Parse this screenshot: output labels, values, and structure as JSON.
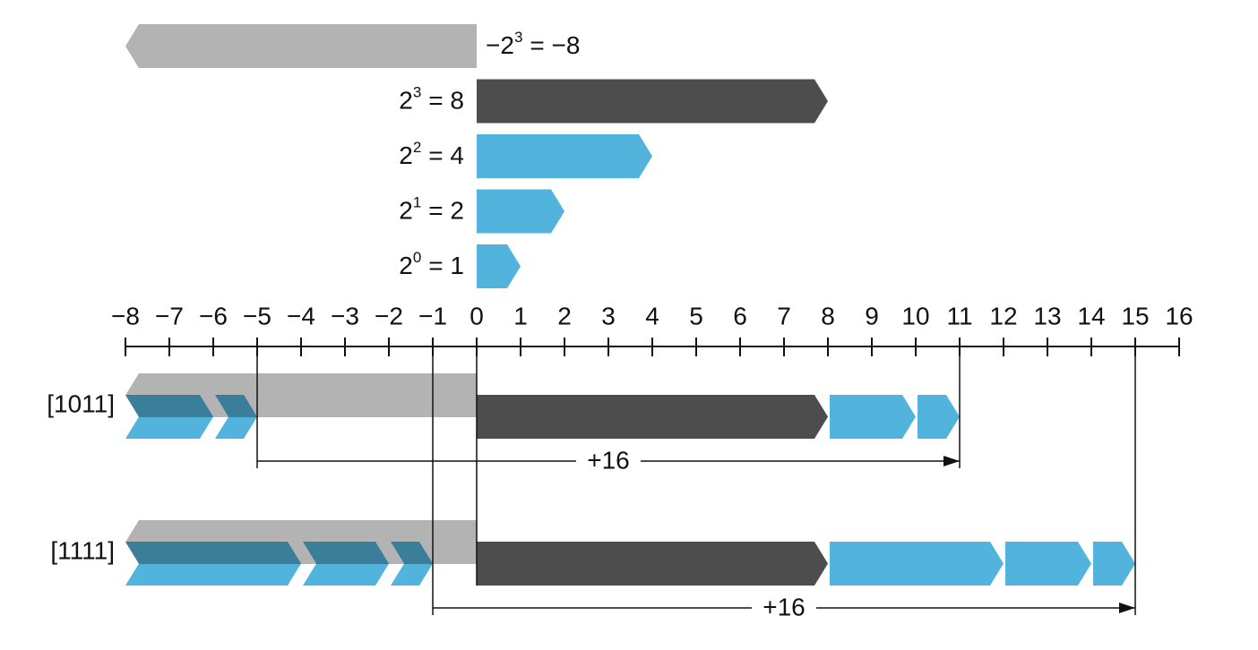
{
  "weights": [
    {
      "base": "−2",
      "exponent": "3",
      "result": "= −8",
      "value": -8,
      "color": "#b3b3b3"
    },
    {
      "base": "2",
      "exponent": "3",
      "result": "= 8",
      "value": 8,
      "color": "#4d4d4d"
    },
    {
      "base": "2",
      "exponent": "2",
      "result": "= 4",
      "value": 4,
      "color": "#52b4dc"
    },
    {
      "base": "2",
      "exponent": "1",
      "result": "= 2",
      "value": 2,
      "color": "#52b4dc"
    },
    {
      "base": "2",
      "exponent": "0",
      "result": "= 1",
      "value": 1,
      "color": "#52b4dc"
    }
  ],
  "axis": {
    "lim": [
      -8,
      16
    ],
    "ticks": [
      {
        "value": -8,
        "label": "−8"
      },
      {
        "value": -7,
        "label": "−7"
      },
      {
        "value": -6,
        "label": "−6"
      },
      {
        "value": -5,
        "label": "−5"
      },
      {
        "value": -4,
        "label": "−4"
      },
      {
        "value": -3,
        "label": "−3"
      },
      {
        "value": -2,
        "label": "−2"
      },
      {
        "value": -1,
        "label": "−1"
      },
      0,
      1,
      2,
      3,
      4,
      5,
      6,
      7,
      8,
      9,
      10,
      11,
      12,
      13,
      14,
      15,
      16
    ]
  },
  "rows": [
    {
      "label": "[1011]",
      "negative": -8,
      "positive": [
        8,
        2,
        1
      ],
      "shift": {
        "from": -5,
        "to": 11,
        "label": "+16"
      }
    },
    {
      "label": "[1111]",
      "negative": -8,
      "positive": [
        8,
        4,
        2,
        1
      ],
      "shift": {
        "from": -1,
        "to": 15,
        "label": "+16"
      }
    }
  ]
}
